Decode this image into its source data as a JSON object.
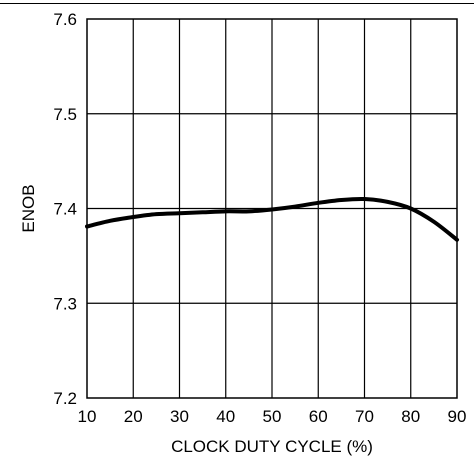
{
  "chart_data": {
    "type": "line",
    "xlabel": "CLOCK DUTY CYCLE (%)",
    "ylabel": "ENOB",
    "xlim": [
      10,
      90
    ],
    "ylim": [
      7.2,
      7.6
    ],
    "x_ticks": [
      "10",
      "20",
      "30",
      "40",
      "50",
      "60",
      "70",
      "80",
      "90"
    ],
    "y_ticks": [
      "7.6",
      "7.5",
      "7.4",
      "7.3",
      "7.2"
    ],
    "grid": true,
    "series": [
      {
        "color": "#000000",
        "x": [
          10,
          15,
          20,
          25,
          30,
          35,
          40,
          45,
          50,
          55,
          60,
          65,
          70,
          75,
          80,
          85,
          90
        ],
        "y": [
          7.381,
          7.387,
          7.391,
          7.394,
          7.395,
          7.396,
          7.397,
          7.397,
          7.399,
          7.402,
          7.406,
          7.409,
          7.41,
          7.407,
          7.4,
          7.386,
          7.367
        ]
      }
    ]
  }
}
